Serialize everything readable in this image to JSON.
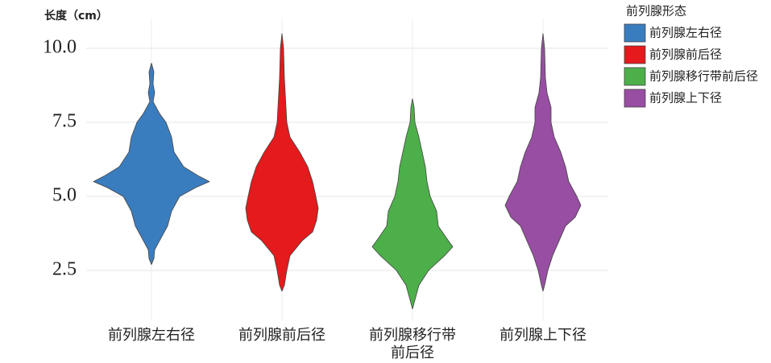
{
  "chart_data": {
    "type": "violin",
    "y_label": "长度（cm）",
    "legend_title": "前列腺形态",
    "categories": [
      "前列腺左右径",
      "前列腺前后径",
      "前列腺移行带前后径",
      "前列腺上下径"
    ],
    "ylim": [
      0.8,
      11.0
    ],
    "yticks": [
      {
        "value": 2.5,
        "label": "2.5"
      },
      {
        "value": 5.0,
        "label": "5.0"
      },
      {
        "value": 7.5,
        "label": "7.5"
      },
      {
        "value": 10.0,
        "label": "10.0"
      }
    ],
    "grid": true,
    "series": [
      {
        "name": "前列腺左右径",
        "color": "#3a7dbf",
        "y": [
          9.5,
          9.2,
          8.8,
          8.5,
          8.2,
          7.8,
          7.5,
          7.0,
          6.5,
          6.0,
          5.7,
          5.5,
          5.3,
          5.0,
          4.5,
          4.0,
          3.5,
          3.2,
          2.9,
          2.7
        ],
        "density": [
          0,
          3,
          2,
          4,
          2,
          10,
          18,
          25,
          28,
          40,
          58,
          72,
          55,
          35,
          25,
          20,
          10,
          4,
          3,
          0
        ]
      },
      {
        "name": "前列腺前后径",
        "color": "#e41a1c",
        "y": [
          10.5,
          10.0,
          9.0,
          8.0,
          7.5,
          7.0,
          6.5,
          6.0,
          5.5,
          5.0,
          4.6,
          4.2,
          3.8,
          3.5,
          3.0,
          2.5,
          2.0,
          1.8
        ],
        "density": [
          0,
          2,
          3,
          5,
          6,
          10,
          22,
          32,
          38,
          42,
          45,
          43,
          38,
          25,
          10,
          6,
          3,
          0
        ]
      },
      {
        "name": "前列腺移行带前后径",
        "color": "#4daf4a",
        "y": [
          8.3,
          8.0,
          7.5,
          7.0,
          6.5,
          6.0,
          5.5,
          5.0,
          4.5,
          4.0,
          3.6,
          3.3,
          3.0,
          2.5,
          2.0,
          1.5,
          1.2
        ],
        "density": [
          0,
          2,
          3,
          8,
          12,
          16,
          18,
          22,
          30,
          32,
          42,
          50,
          40,
          20,
          8,
          3,
          0
        ]
      },
      {
        "name": "前列腺上下径",
        "color": "#984ea3",
        "y": [
          10.5,
          10.0,
          9.0,
          8.5,
          8.0,
          7.5,
          7.0,
          6.5,
          6.0,
          5.5,
          5.0,
          4.7,
          4.3,
          4.0,
          3.5,
          3.0,
          2.5,
          2.0,
          1.8
        ],
        "density": [
          0,
          2,
          3,
          5,
          10,
          10,
          14,
          22,
          28,
          32,
          42,
          47,
          40,
          28,
          20,
          12,
          6,
          2,
          0
        ]
      }
    ]
  }
}
